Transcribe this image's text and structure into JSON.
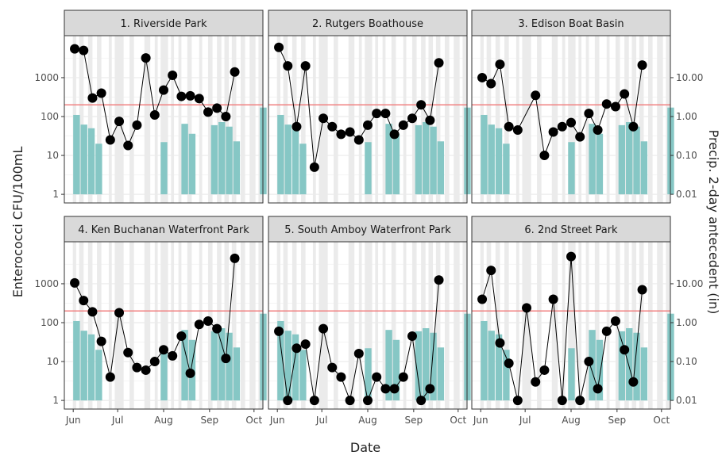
{
  "chart_data": {
    "type": "faceted-combo",
    "description_axes": {
      "xlabel": "Date",
      "ylabel_left": "Enterococci CFU/100mL",
      "ylabel_right": "Precip. 2-day antecedent (in)"
    },
    "x_ticks": [
      {
        "label": "Jun",
        "day": 0
      },
      {
        "label": "Jul",
        "day": 30
      },
      {
        "label": "Aug",
        "day": 61
      },
      {
        "label": "Sep",
        "day": 92
      },
      {
        "label": "Oct",
        "day": 122
      }
    ],
    "left_axis": {
      "scale": "log10",
      "ylim": [
        0.6,
        12000
      ],
      "ticks": [
        1,
        10,
        100,
        1000
      ],
      "tick_labels": [
        "1",
        "10",
        "100",
        "1000"
      ]
    },
    "right_axis": {
      "scale": "log10",
      "ylim": [
        0.006,
        120
      ],
      "ticks": [
        0.01,
        0.1,
        1,
        10
      ],
      "tick_labels": [
        "0.01",
        "0.10",
        "1.00",
        "10.00"
      ]
    },
    "threshold": {
      "value": 200,
      "color": "#f08080"
    },
    "colors": {
      "bar": "#86c7c5",
      "point": "#000000",
      "line": "#000000",
      "panel_bg": "#ffffff",
      "grid_major": "#ebebeb",
      "grid_minor": "#f4f4f4",
      "wet_band": "#ebebeb",
      "strip_bg": "#d9d9d9",
      "border": "#333333",
      "text": "#4d4d4d",
      "axis_title": "#222222"
    },
    "wet_bands": [
      {
        "start": 0,
        "end": 2
      },
      {
        "start": 4,
        "end": 7
      },
      {
        "start": 10,
        "end": 13
      },
      {
        "start": 16,
        "end": 19
      },
      {
        "start": 24,
        "end": 26
      },
      {
        "start": 28,
        "end": 34
      },
      {
        "start": 38,
        "end": 41
      },
      {
        "start": 48,
        "end": 52
      },
      {
        "start": 55,
        "end": 57
      },
      {
        "start": 59,
        "end": 64
      },
      {
        "start": 66,
        "end": 68
      },
      {
        "start": 71,
        "end": 73
      },
      {
        "start": 77,
        "end": 80
      },
      {
        "start": 85,
        "end": 87
      },
      {
        "start": 91,
        "end": 94
      },
      {
        "start": 97,
        "end": 100
      },
      {
        "start": 102,
        "end": 105
      },
      {
        "start": 107,
        "end": 110
      },
      {
        "start": 113,
        "end": 116
      },
      {
        "start": 119,
        "end": 123
      },
      {
        "start": 125,
        "end": 128
      }
    ],
    "precip_bars": [
      {
        "day": 0,
        "width": 4.5,
        "value": 1.1
      },
      {
        "day": 5,
        "width": 4.5,
        "value": 0.62
      },
      {
        "day": 10,
        "width": 4.5,
        "value": 0.5
      },
      {
        "day": 15,
        "width": 4.5,
        "value": 0.2
      },
      {
        "day": 59,
        "width": 4.5,
        "value": 0.22
      },
      {
        "day": 73,
        "width": 4.5,
        "value": 0.65
      },
      {
        "day": 78,
        "width": 4.5,
        "value": 0.36
      },
      {
        "day": 93,
        "width": 4.5,
        "value": 0.6
      },
      {
        "day": 98,
        "width": 4.5,
        "value": 0.72
      },
      {
        "day": 103,
        "width": 4.5,
        "value": 0.55
      },
      {
        "day": 108,
        "width": 4.5,
        "value": 0.23
      },
      {
        "day": 126,
        "width": 4.5,
        "value": 1.7
      }
    ],
    "panels": [
      {
        "title": "1. Riverside Park",
        "points": [
          {
            "day": 1,
            "value": 5500
          },
          {
            "day": 7,
            "value": 5000
          },
          {
            "day": 13,
            "value": 300
          },
          {
            "day": 19,
            "value": 400
          },
          {
            "day": 25,
            "value": 25
          },
          {
            "day": 31,
            "value": 75
          },
          {
            "day": 37,
            "value": 18
          },
          {
            "day": 43,
            "value": 60
          },
          {
            "day": 49,
            "value": 3200
          },
          {
            "day": 55,
            "value": 110
          },
          {
            "day": 61,
            "value": 480
          },
          {
            "day": 67,
            "value": 1150
          },
          {
            "day": 73,
            "value": 330
          },
          {
            "day": 79,
            "value": 340
          },
          {
            "day": 85,
            "value": 290
          },
          {
            "day": 91,
            "value": 130
          },
          {
            "day": 97,
            "value": 165
          },
          {
            "day": 103,
            "value": 100
          },
          {
            "day": 109,
            "value": 1400
          }
        ]
      },
      {
        "title": "2. Rutgers Boathouse",
        "points": [
          {
            "day": 1,
            "value": 6000
          },
          {
            "day": 7,
            "value": 2000
          },
          {
            "day": 13,
            "value": 55
          },
          {
            "day": 19,
            "value": 2000
          },
          {
            "day": 25,
            "value": 5
          },
          {
            "day": 31,
            "value": 90
          },
          {
            "day": 37,
            "value": 55
          },
          {
            "day": 43,
            "value": 35
          },
          {
            "day": 49,
            "value": 40
          },
          {
            "day": 55,
            "value": 25
          },
          {
            "day": 61,
            "value": 60
          },
          {
            "day": 67,
            "value": 120
          },
          {
            "day": 73,
            "value": 120
          },
          {
            "day": 79,
            "value": 35
          },
          {
            "day": 85,
            "value": 60
          },
          {
            "day": 91,
            "value": 90
          },
          {
            "day": 97,
            "value": 200
          },
          {
            "day": 103,
            "value": 80
          },
          {
            "day": 109,
            "value": 2400
          }
        ]
      },
      {
        "title": "3. Edison Boat Basin",
        "points": [
          {
            "day": 1,
            "value": 1000
          },
          {
            "day": 7,
            "value": 700
          },
          {
            "day": 13,
            "value": 2200
          },
          {
            "day": 19,
            "value": 55
          },
          {
            "day": 25,
            "value": 45
          },
          {
            "day": 37,
            "value": 350
          },
          {
            "day": 43,
            "value": 10
          },
          {
            "day": 49,
            "value": 40
          },
          {
            "day": 55,
            "value": 55
          },
          {
            "day": 61,
            "value": 70
          },
          {
            "day": 67,
            "value": 30
          },
          {
            "day": 73,
            "value": 120
          },
          {
            "day": 79,
            "value": 45
          },
          {
            "day": 85,
            "value": 210
          },
          {
            "day": 91,
            "value": 180
          },
          {
            "day": 97,
            "value": 380
          },
          {
            "day": 103,
            "value": 55
          },
          {
            "day": 109,
            "value": 2100
          }
        ]
      },
      {
        "title": "4. Ken Buchanan Waterfront Park",
        "points": [
          {
            "day": 1,
            "value": 1050
          },
          {
            "day": 7,
            "value": 370
          },
          {
            "day": 13,
            "value": 190
          },
          {
            "day": 19,
            "value": 33
          },
          {
            "day": 25,
            "value": 4
          },
          {
            "day": 31,
            "value": 180
          },
          {
            "day": 37,
            "value": 17
          },
          {
            "day": 43,
            "value": 7
          },
          {
            "day": 49,
            "value": 6
          },
          {
            "day": 55,
            "value": 10
          },
          {
            "day": 61,
            "value": 20
          },
          {
            "day": 67,
            "value": 14
          },
          {
            "day": 73,
            "value": 45
          },
          {
            "day": 79,
            "value": 5
          },
          {
            "day": 85,
            "value": 90
          },
          {
            "day": 91,
            "value": 110
          },
          {
            "day": 97,
            "value": 70
          },
          {
            "day": 103,
            "value": 12
          },
          {
            "day": 109,
            "value": 4500
          }
        ]
      },
      {
        "title": "5. South Amboy Waterfront Park",
        "points": [
          {
            "day": 1,
            "value": 60
          },
          {
            "day": 7,
            "value": 1
          },
          {
            "day": 13,
            "value": 22
          },
          {
            "day": 19,
            "value": 28
          },
          {
            "day": 25,
            "value": 1
          },
          {
            "day": 31,
            "value": 70
          },
          {
            "day": 37,
            "value": 7
          },
          {
            "day": 43,
            "value": 4
          },
          {
            "day": 49,
            "value": 1
          },
          {
            "day": 55,
            "value": 16
          },
          {
            "day": 61,
            "value": 1
          },
          {
            "day": 67,
            "value": 4
          },
          {
            "day": 73,
            "value": 2
          },
          {
            "day": 79,
            "value": 2
          },
          {
            "day": 85,
            "value": 4
          },
          {
            "day": 91,
            "value": 45
          },
          {
            "day": 97,
            "value": 1
          },
          {
            "day": 103,
            "value": 2
          },
          {
            "day": 109,
            "value": 1250
          }
        ]
      },
      {
        "title": "6. 2nd Street Park",
        "points": [
          {
            "day": 1,
            "value": 400
          },
          {
            "day": 7,
            "value": 2200
          },
          {
            "day": 13,
            "value": 30
          },
          {
            "day": 19,
            "value": 9
          },
          {
            "day": 25,
            "value": 1
          },
          {
            "day": 31,
            "value": 240
          },
          {
            "day": 37,
            "value": 3
          },
          {
            "day": 43,
            "value": 6
          },
          {
            "day": 49,
            "value": 400
          },
          {
            "day": 55,
            "value": 1
          },
          {
            "day": 61,
            "value": 5000
          },
          {
            "day": 67,
            "value": 1
          },
          {
            "day": 73,
            "value": 10
          },
          {
            "day": 79,
            "value": 2
          },
          {
            "day": 85,
            "value": 60
          },
          {
            "day": 91,
            "value": 110
          },
          {
            "day": 97,
            "value": 20
          },
          {
            "day": 103,
            "value": 3
          },
          {
            "day": 109,
            "value": 700
          }
        ]
      }
    ]
  }
}
